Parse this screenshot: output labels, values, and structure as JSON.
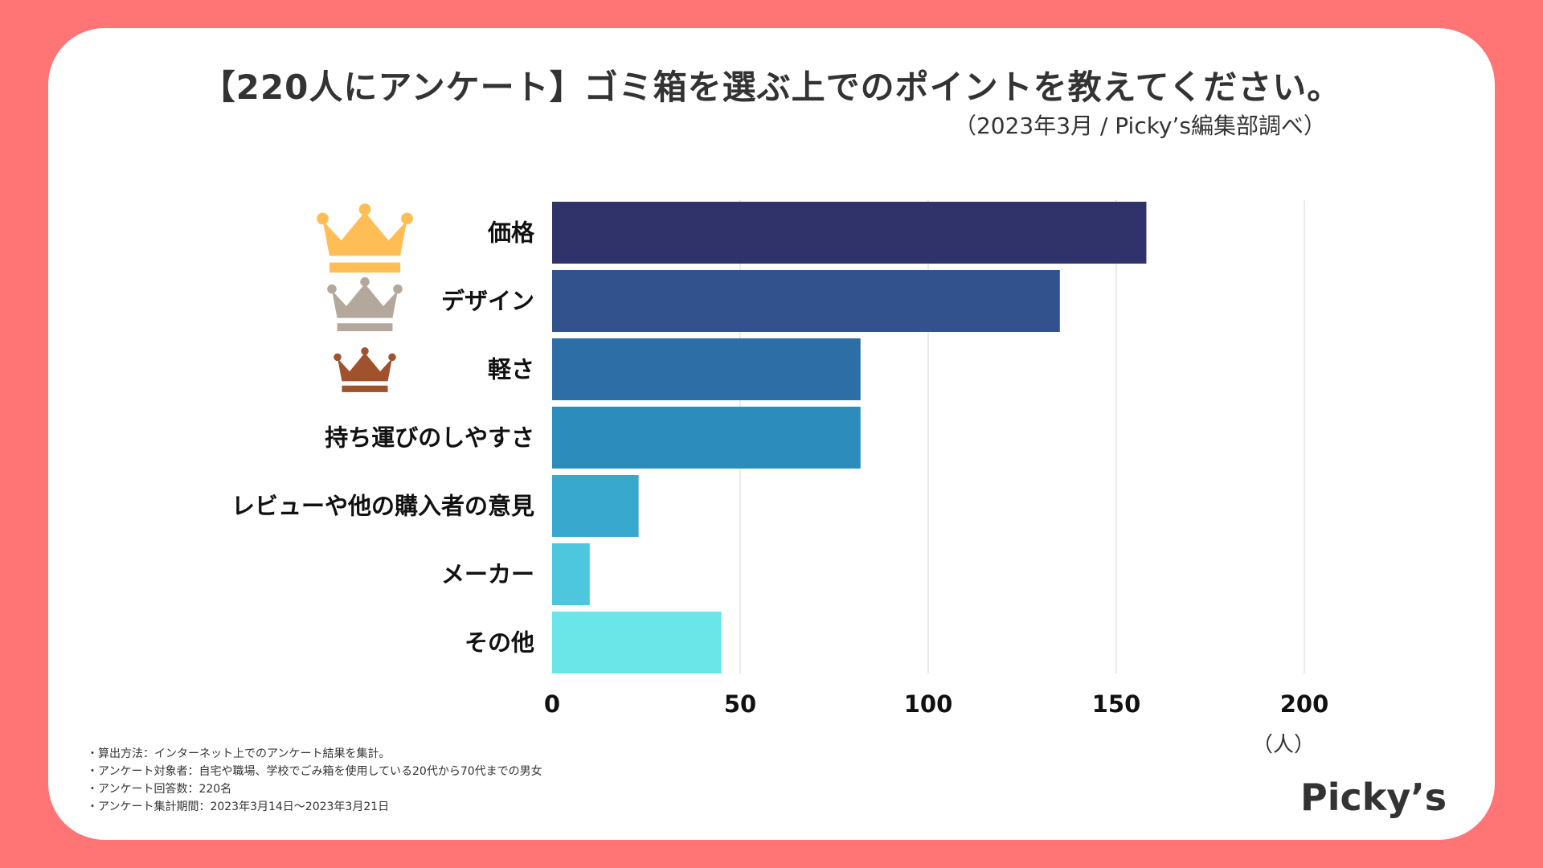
{
  "title": "【220人にアンケート】ゴミ箱を選ぶ上でのポイントを教えてください。",
  "subtitle": "（2023年3月 / Picky’s編集部調べ）",
  "chart_data": {
    "type": "bar",
    "orientation": "horizontal",
    "categories": [
      "価格",
      "デザイン",
      "軽さ",
      "持ち運びのしやすさ",
      "レビューや他の購入者の意見",
      "メーカー",
      "その他"
    ],
    "values": [
      158,
      135,
      82,
      82,
      23,
      10,
      45
    ],
    "colors": [
      "#2f336a",
      "#31528c",
      "#2e6ea6",
      "#2c8cbc",
      "#39a8cf",
      "#4cc7de",
      "#6ae6e9"
    ],
    "xlim": [
      0,
      200
    ],
    "xticks": [
      "0",
      "50",
      "100",
      "150",
      "200"
    ],
    "xlabel": "（人）",
    "grid": true,
    "ranking_icons": [
      {
        "name": "gold-crown-icon",
        "color": "#ffbe55"
      },
      {
        "name": "silver-crown-icon",
        "color": "#b4a89c"
      },
      {
        "name": "bronze-crown-icon",
        "color": "#a0522d"
      }
    ]
  },
  "notes": [
    "・算出方法：インターネット上でのアンケート結果を集計。",
    "・アンケート対象者：自宅や職場、学校でごみ箱を使用している20代から70代までの男女",
    "・アンケート回答数：220名",
    "・アンケート集計期間：2023年3月14日〜2023年3月21日"
  ],
  "logo": "Picky’s"
}
